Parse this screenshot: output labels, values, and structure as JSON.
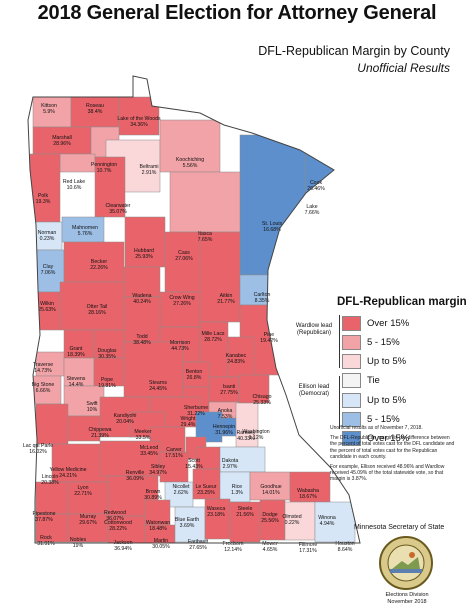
{
  "title": "2018 General Election for Attorney General",
  "subtitle": "DFL-Republican Margin by County",
  "subtitle2": "Unofficial Results",
  "legend": {
    "title": "DFL-Republican margin",
    "wardlow_label": "Wardlow lead (Republican)",
    "ellison_label": "Ellison lead (Democrat)",
    "items": [
      {
        "label": "Over 15%",
        "color": "#e8646a"
      },
      {
        "label": "5 - 15%",
        "color": "#f2a3a7"
      },
      {
        "label": "Up to 5%",
        "color": "#fad8da"
      },
      {
        "label": "Tie",
        "color": "#f4f4f4"
      },
      {
        "label": "Up to 5%",
        "color": "#d6e6f7"
      },
      {
        "label": "5 - 15%",
        "color": "#9dbfe6"
      },
      {
        "label": "Over 15%",
        "color": "#5d8fcc"
      }
    ]
  },
  "notes": [
    "Unofficial results as of November 7, 2018.",
    "The DFL-Republican margin is the difference between the percent of total votes cast for the DFL candidate and the percent of total votes cast for the Republican candidate in each county.",
    "For example, Ellison received 48.96% and Wardlow received 45.09% of the total statewide vote, so that margin is 3.87%."
  ],
  "footer": {
    "agency": "Minnesota Secretary of State",
    "division": "Elections Division",
    "date": "November 2018"
  },
  "counties": [
    {
      "name": "Kittson",
      "margin": "5.9%",
      "cls": "r2"
    },
    {
      "name": "Roseau",
      "margin": "38.4%",
      "cls": "r3"
    },
    {
      "name": "Lake of the Woods",
      "margin": "34.36%",
      "cls": "r3"
    },
    {
      "name": "Marshall",
      "margin": "28.96%",
      "cls": "r3"
    },
    {
      "name": "Pennington",
      "margin": "10.7%",
      "cls": "r2"
    },
    {
      "name": "Beltrami",
      "margin": "2.91%",
      "cls": "r1"
    },
    {
      "name": "Koochiching",
      "margin": "5.56%",
      "cls": "r2"
    },
    {
      "name": "Red Lake",
      "margin": "10.6%",
      "cls": "r2"
    },
    {
      "name": "Polk",
      "margin": "19.3%",
      "cls": "r3"
    },
    {
      "name": "Clearwater",
      "margin": "35.07%",
      "cls": "r3"
    },
    {
      "name": "Cook",
      "margin": "26.46%",
      "cls": "d3"
    },
    {
      "name": "Norman",
      "margin": "0.23%",
      "cls": "d1"
    },
    {
      "name": "Mahnomen",
      "margin": "5.76%",
      "cls": "d2"
    },
    {
      "name": "St. Louis",
      "margin": "16.68%",
      "cls": "d3"
    },
    {
      "name": "Lake",
      "margin": "7.66%",
      "cls": "d2"
    },
    {
      "name": "Itasca",
      "margin": "7.65%",
      "cls": "r2"
    },
    {
      "name": "Hubbard",
      "margin": "25.93%",
      "cls": "r3"
    },
    {
      "name": "Cass",
      "margin": "27.06%",
      "cls": "r3"
    },
    {
      "name": "Clay",
      "margin": "7.06%",
      "cls": "d2"
    },
    {
      "name": "Becker",
      "margin": "22.26%",
      "cls": "r3"
    },
    {
      "name": "Wadena",
      "margin": "40.24%",
      "cls": "r3"
    },
    {
      "name": "Crow Wing",
      "margin": "27.26%",
      "cls": "r3"
    },
    {
      "name": "Aitkin",
      "margin": "21.77%",
      "cls": "r3"
    },
    {
      "name": "Carlton",
      "margin": "8.35%",
      "cls": "d2"
    },
    {
      "name": "Wilkin",
      "margin": "25.63%",
      "cls": "r3"
    },
    {
      "name": "Otter Tail",
      "margin": "28.16%",
      "cls": "r3"
    },
    {
      "name": "Todd",
      "margin": "38.48%",
      "cls": "r3"
    },
    {
      "name": "Morrison",
      "margin": "44.73%",
      "cls": "r3"
    },
    {
      "name": "Mille Lacs",
      "margin": "28.72%",
      "cls": "r3"
    },
    {
      "name": "Pine",
      "margin": "19.42%",
      "cls": "r3"
    },
    {
      "name": "Kanabec",
      "margin": "24.83%",
      "cls": "r3"
    },
    {
      "name": "Grant",
      "margin": "18.39%",
      "cls": "r3"
    },
    {
      "name": "Douglas",
      "margin": "30.35%",
      "cls": "r3"
    },
    {
      "name": "Benton",
      "margin": "26.8%",
      "cls": "r3"
    },
    {
      "name": "Traverse",
      "margin": "14.73%",
      "cls": "r2"
    },
    {
      "name": "Stevens",
      "margin": "14.4%",
      "cls": "r2"
    },
    {
      "name": "Pope",
      "margin": "19.81%",
      "cls": "r3"
    },
    {
      "name": "Stearns",
      "margin": "24.45%",
      "cls": "r3"
    },
    {
      "name": "Isanti",
      "margin": "27.75%",
      "cls": "r3"
    },
    {
      "name": "Chisago",
      "margin": "25.33%",
      "cls": "r3"
    },
    {
      "name": "Sherburne",
      "margin": "31.22%",
      "cls": "r3"
    },
    {
      "name": "Big Stone",
      "margin": "6.66%",
      "cls": "r2"
    },
    {
      "name": "Swift",
      "margin": "10%",
      "cls": "r2"
    },
    {
      "name": "Kandiyohi",
      "margin": "20.04%",
      "cls": "r3"
    },
    {
      "name": "Anoka",
      "margin": "7.53%",
      "cls": "r2"
    },
    {
      "name": "Chippewa",
      "margin": "21.39%",
      "cls": "r3"
    },
    {
      "name": "Wright",
      "margin": "29.4%",
      "cls": "r3"
    },
    {
      "name": "Meeker",
      "margin": "33.5%",
      "cls": "r3"
    },
    {
      "name": "Hennepin",
      "margin": "31.96%",
      "cls": "d3"
    },
    {
      "name": "Ramsey",
      "margin": "40.33%",
      "cls": "d3"
    },
    {
      "name": "Washington",
      "margin": "1.12%",
      "cls": "r1"
    },
    {
      "name": "Lac qui Parle",
      "margin": "16.02%",
      "cls": "r3"
    },
    {
      "name": "McLeod",
      "margin": "33.45%",
      "cls": "r3"
    },
    {
      "name": "Carver",
      "margin": "17.51%",
      "cls": "r3"
    },
    {
      "name": "Yellow Medicine",
      "margin": "24.21%",
      "cls": "r3"
    },
    {
      "name": "Renville",
      "margin": "36.09%",
      "cls": "r3"
    },
    {
      "name": "Scott",
      "margin": "15.43%",
      "cls": "r3"
    },
    {
      "name": "Dakota",
      "margin": "2.97%",
      "cls": "d1"
    },
    {
      "name": "Sibley",
      "margin": "34.97%",
      "cls": "r3"
    },
    {
      "name": "Lincoln",
      "margin": "20.38%",
      "cls": "r3"
    },
    {
      "name": "Lyon",
      "margin": "22.71%",
      "cls": "r3"
    },
    {
      "name": "Redwood",
      "margin": "36.07%",
      "cls": "r3"
    },
    {
      "name": "Nicollet",
      "margin": "2.62%",
      "cls": "d1"
    },
    {
      "name": "Le Sueur",
      "margin": "23.25%",
      "cls": "r3"
    },
    {
      "name": "Rice",
      "margin": "1.3%",
      "cls": "d1"
    },
    {
      "name": "Goodhue",
      "margin": "14.01%",
      "cls": "r2"
    },
    {
      "name": "Wabasha",
      "margin": "18.67%",
      "cls": "r3"
    },
    {
      "name": "Brown",
      "margin": "30.89%",
      "cls": "r3"
    },
    {
      "name": "Pipestone",
      "margin": "37.87%",
      "cls": "r3"
    },
    {
      "name": "Murray",
      "margin": "29.67%",
      "cls": "r3"
    },
    {
      "name": "Cottonwood",
      "margin": "28.22%",
      "cls": "r3"
    },
    {
      "name": "Watonwan",
      "margin": "18.48%",
      "cls": "r3"
    },
    {
      "name": "Blue Earth",
      "margin": "3.69%",
      "cls": "d1"
    },
    {
      "name": "Waseca",
      "margin": "23.18%",
      "cls": "r3"
    },
    {
      "name": "Steele",
      "margin": "21.56%",
      "cls": "r3"
    },
    {
      "name": "Dodge",
      "margin": "25.56%",
      "cls": "r3"
    },
    {
      "name": "Olmsted",
      "margin": "0.22%",
      "cls": "r1"
    },
    {
      "name": "Winona",
      "margin": "4.94%",
      "cls": "d1"
    },
    {
      "name": "Rock",
      "margin": "31.91%",
      "cls": "r3"
    },
    {
      "name": "Nobles",
      "margin": "19%",
      "cls": "r3"
    },
    {
      "name": "Jackson",
      "margin": "36.94%",
      "cls": "r3"
    },
    {
      "name": "Martin",
      "margin": "30.05%",
      "cls": "r3"
    },
    {
      "name": "Faribault",
      "margin": "27.65%",
      "cls": "r3"
    },
    {
      "name": "Freeborn",
      "margin": "12.14%",
      "cls": "r2"
    },
    {
      "name": "Mower",
      "margin": "4.65%",
      "cls": "r1"
    },
    {
      "name": "Fillmore",
      "margin": "17.31%",
      "cls": "r3"
    },
    {
      "name": "Houston",
      "margin": "8.64%",
      "cls": "r2"
    }
  ]
}
